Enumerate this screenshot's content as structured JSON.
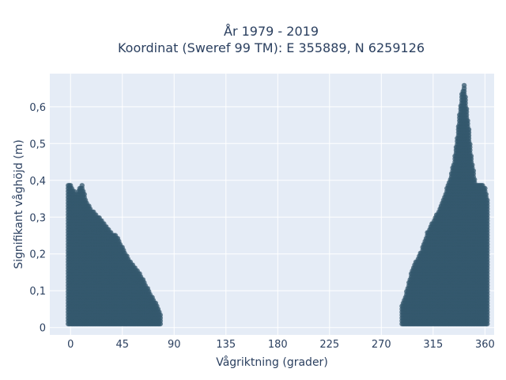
{
  "chart_data": {
    "type": "scatter",
    "title_line1": "År 1979 - 2019",
    "title_line2": "Koordinat (Sweref 99 TM): E 355889, N 6259126",
    "xlabel": "Vågriktning (grader)",
    "ylabel": "Signifikant våghöjd (m)",
    "xlim": [
      -18,
      368
    ],
    "ylim": [
      -0.02,
      0.69
    ],
    "x_ticks": [
      0,
      45,
      90,
      135,
      180,
      225,
      270,
      315,
      360
    ],
    "x_tick_labels": [
      "0",
      "45",
      "90",
      "135",
      "180",
      "225",
      "270",
      "315",
      "360"
    ],
    "y_ticks": [
      0,
      0.1,
      0.2,
      0.3,
      0.4,
      0.5,
      0.6
    ],
    "y_tick_labels": [
      "0",
      "0,1",
      "0,2",
      "0,3",
      "0,4",
      "0,5",
      "0,6"
    ],
    "grid": true,
    "marker_color": "#34586e",
    "plot_background": "#e5ecf6",
    "series": [
      {
        "envelope": [
          [
            -2,
            0.39
          ],
          [
            0,
            0.39
          ],
          [
            5,
            0.36
          ],
          [
            8,
            0.38
          ],
          [
            10,
            0.39
          ],
          [
            13,
            0.35
          ],
          [
            18,
            0.32
          ],
          [
            25,
            0.3
          ],
          [
            30,
            0.28
          ],
          [
            35,
            0.26
          ],
          [
            40,
            0.25
          ],
          [
            45,
            0.22
          ],
          [
            50,
            0.19
          ],
          [
            55,
            0.17
          ],
          [
            60,
            0.15
          ],
          [
            65,
            0.12
          ],
          [
            70,
            0.09
          ],
          [
            75,
            0.06
          ],
          [
            78,
            0.04
          ]
        ],
        "ymin": 0.01
      },
      {
        "envelope": [
          [
            288,
            0.06
          ],
          [
            292,
            0.1
          ],
          [
            296,
            0.15
          ],
          [
            300,
            0.18
          ],
          [
            305,
            0.21
          ],
          [
            310,
            0.26
          ],
          [
            315,
            0.29
          ],
          [
            320,
            0.32
          ],
          [
            325,
            0.36
          ],
          [
            330,
            0.41
          ],
          [
            333,
            0.45
          ],
          [
            336,
            0.52
          ],
          [
            338,
            0.58
          ],
          [
            340,
            0.64
          ],
          [
            342,
            0.66
          ],
          [
            344,
            0.6
          ],
          [
            346,
            0.54
          ],
          [
            348,
            0.47
          ],
          [
            352,
            0.39
          ],
          [
            355,
            0.39
          ],
          [
            358,
            0.39
          ],
          [
            360,
            0.38
          ],
          [
            362,
            0.35
          ]
        ],
        "ymin": 0.01
      }
    ]
  }
}
